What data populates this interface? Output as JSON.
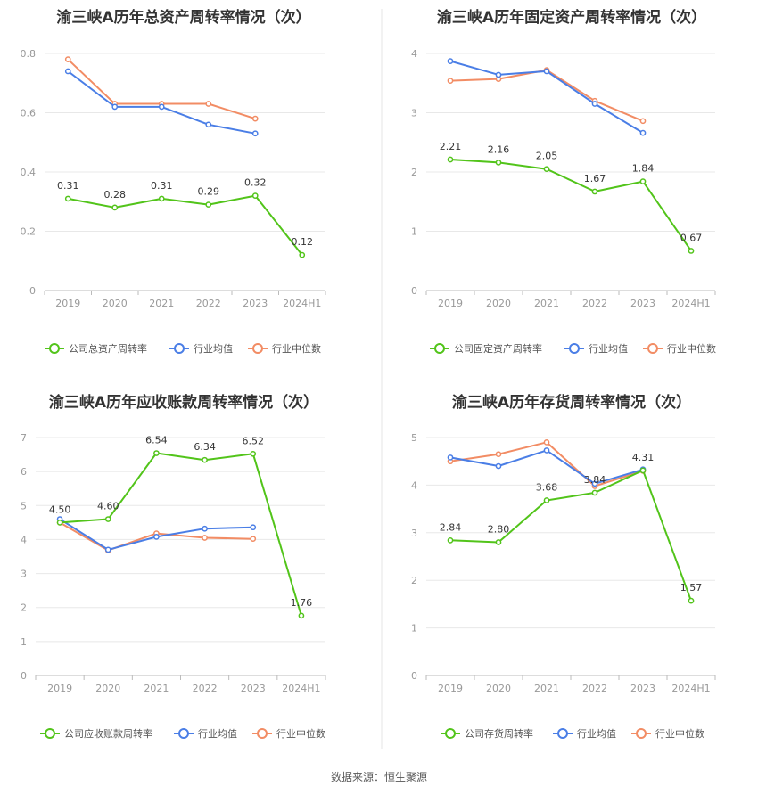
{
  "source": "数据来源：恒生聚源",
  "colors": {
    "company": "#52c41a",
    "avg": "#4a7ee6",
    "median": "#f28c64",
    "grid": "#e8e8e8",
    "axis": "#bbbbbb",
    "divider": "#e5e5e5"
  },
  "legend_icon": "circle-line-icon",
  "chart_data": [
    {
      "type": "line",
      "title": "渝三峡A历年总资产周转率情况（次）",
      "categories": [
        "2019",
        "2020",
        "2021",
        "2022",
        "2023",
        "2024H1"
      ],
      "y_ticks": [
        "0",
        "0.2",
        "0.4",
        "0.6",
        "0.8"
      ],
      "ylim": [
        0,
        0.8
      ],
      "series": [
        {
          "name": "公司总资产周转率",
          "role": "company",
          "values": [
            0.31,
            0.28,
            0.31,
            0.29,
            0.32,
            0.12
          ],
          "labels": [
            "0.31",
            "0.28",
            "0.31",
            "0.29",
            "0.32",
            "0.12"
          ]
        },
        {
          "name": "行业均值",
          "role": "avg",
          "values": [
            0.74,
            0.62,
            0.62,
            0.56,
            0.53,
            null
          ]
        },
        {
          "name": "行业中位数",
          "role": "median",
          "values": [
            0.78,
            0.63,
            0.63,
            0.63,
            0.58,
            null
          ]
        }
      ]
    },
    {
      "type": "line",
      "title": "渝三峡A历年固定资产周转率情况（次）",
      "categories": [
        "2019",
        "2020",
        "2021",
        "2022",
        "2023",
        "2024H1"
      ],
      "y_ticks": [
        "0",
        "1",
        "2",
        "3",
        "4"
      ],
      "ylim": [
        0,
        4
      ],
      "series": [
        {
          "name": "公司固定资产周转率",
          "role": "company",
          "values": [
            2.21,
            2.16,
            2.05,
            1.67,
            1.84,
            0.67
          ],
          "labels": [
            "2.21",
            "2.16",
            "2.05",
            "1.67",
            "1.84",
            "0.67"
          ]
        },
        {
          "name": "行业均值",
          "role": "avg",
          "values": [
            3.87,
            3.64,
            3.7,
            3.15,
            2.66,
            null
          ]
        },
        {
          "name": "行业中位数",
          "role": "median",
          "values": [
            3.54,
            3.57,
            3.72,
            3.2,
            2.86,
            null
          ]
        }
      ]
    },
    {
      "type": "line",
      "title": "渝三峡A历年应收账款周转率情况（次）",
      "categories": [
        "2019",
        "2020",
        "2021",
        "2022",
        "2023",
        "2024H1"
      ],
      "y_ticks": [
        "0",
        "1",
        "2",
        "3",
        "4",
        "5",
        "6",
        "7"
      ],
      "ylim": [
        0,
        7
      ],
      "series": [
        {
          "name": "公司应收账款周转率",
          "role": "company",
          "values": [
            4.5,
            4.6,
            6.54,
            6.34,
            6.52,
            1.76
          ],
          "labels": [
            "4.50",
            "4.60",
            "6.54",
            "6.34",
            "6.52",
            "1.76"
          ]
        },
        {
          "name": "行业均值",
          "role": "avg",
          "values": [
            4.6,
            3.7,
            4.08,
            4.32,
            4.36,
            null
          ]
        },
        {
          "name": "行业中位数",
          "role": "median",
          "values": [
            4.5,
            3.68,
            4.18,
            4.05,
            4.02,
            null
          ]
        }
      ]
    },
    {
      "type": "line",
      "title": "渝三峡A历年存货周转率情况（次）",
      "categories": [
        "2019",
        "2020",
        "2021",
        "2022",
        "2023",
        "2024H1"
      ],
      "y_ticks": [
        "0",
        "1",
        "2",
        "3",
        "4",
        "5"
      ],
      "ylim": [
        0,
        5
      ],
      "series": [
        {
          "name": "公司存货周转率",
          "role": "company",
          "values": [
            2.84,
            2.8,
            3.68,
            3.84,
            4.31,
            1.57
          ],
          "labels": [
            "2.84",
            "2.80",
            "3.68",
            "3.84",
            "4.31",
            "1.57"
          ]
        },
        {
          "name": "行业均值",
          "role": "avg",
          "values": [
            4.58,
            4.4,
            4.73,
            4.03,
            4.33,
            null
          ]
        },
        {
          "name": "行业中位数",
          "role": "median",
          "values": [
            4.5,
            4.65,
            4.9,
            3.98,
            4.3,
            null
          ]
        }
      ]
    }
  ]
}
